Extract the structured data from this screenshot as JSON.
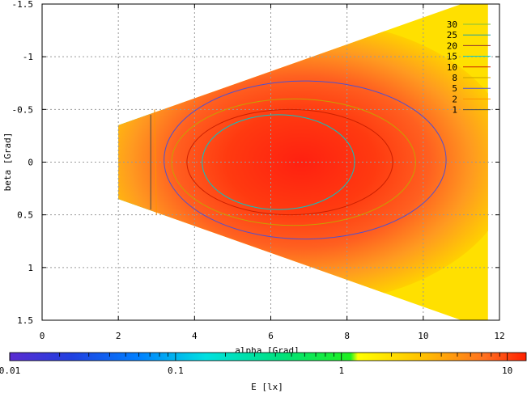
{
  "chart_data": {
    "type": "heatmap",
    "title": "",
    "xlabel": "alpha [Grad]",
    "ylabel": "beta [Grad]",
    "colorbar_label": "E [lx]",
    "xlim": [
      0,
      12
    ],
    "ylim": [
      1.5,
      -1.5
    ],
    "y_axis_inverted": true,
    "x_ticks": [
      0,
      2,
      4,
      6,
      8,
      10,
      12
    ],
    "x_tick_labels": [
      "0",
      "2",
      "4",
      "6",
      "8",
      "10",
      "12"
    ],
    "y_ticks": [
      -1.5,
      -1,
      -0.5,
      0,
      0.5,
      1,
      1.5
    ],
    "y_tick_labels": [
      "-1.5",
      "-1",
      "-0.5",
      "0",
      "0.5",
      "1",
      "1.5"
    ],
    "colorbar_range": [
      0.01,
      13
    ],
    "colorbar_scale": "log",
    "colorbar_ticks": [
      0.01,
      0.1,
      1,
      10
    ],
    "colorbar_tick_labels": [
      "0.01",
      "0.1",
      "1",
      "10"
    ],
    "grid": true,
    "legend_position": "top-right",
    "contour_levels": [
      "30",
      "25",
      "20",
      "15",
      "10",
      "8",
      "5",
      "2",
      "1"
    ],
    "contour_colors": [
      "#7fbf3f",
      "#20a0a0",
      "#8b3030",
      "#00c8c8",
      "#cc2000",
      "#c8a000",
      "#5050d0",
      "#ff9000",
      "#4a4a4a"
    ],
    "data_region": {
      "alpha_range": [
        2,
        11.7
      ],
      "beta_half_width_at_alpha_2": 0.35,
      "beta_half_width_at_alpha_11": 1.5
    },
    "contours": [
      {
        "level": "1",
        "alpha": [
          2.85,
          2.85
        ],
        "beta": [
          -0.45,
          0.45
        ]
      },
      {
        "level": "2",
        "alpha": [
          2.95,
          3.0
        ],
        "beta": [
          -0.5,
          0.5
        ]
      },
      {
        "level": "5",
        "alpha_center": 6.9,
        "beta_center": -0.02,
        "alpha_radius": 3.7,
        "beta_radius": 0.75
      },
      {
        "level": "8",
        "alpha_center": 6.6,
        "beta_center": 0.0,
        "alpha_radius": 3.2,
        "beta_radius": 0.6
      },
      {
        "level": "10",
        "alpha_center": 6.5,
        "beta_center": 0.0,
        "alpha_radius": 2.7,
        "beta_radius": 0.5
      },
      {
        "level": "15",
        "alpha_center": 6.2,
        "beta_center": 0.0,
        "alpha_radius": 2.0,
        "beta_radius": 0.45
      }
    ]
  }
}
